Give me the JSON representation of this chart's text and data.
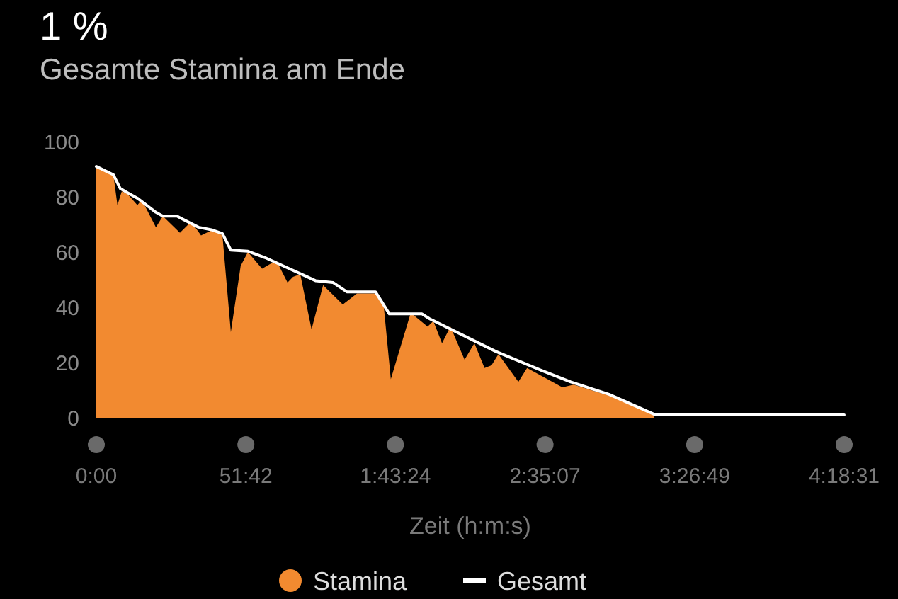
{
  "chart_data": {
    "type": "area",
    "title": "1 %",
    "subtitle": "Gesamte Stamina am Ende",
    "xlabel": "Zeit (h:m:s)",
    "xlim": [
      0,
      258.517
    ],
    "ylim": [
      0,
      100
    ],
    "xticks": [
      {
        "value": 0,
        "label": "0:00"
      },
      {
        "value": 51.7,
        "label": "51:42"
      },
      {
        "value": 103.4,
        "label": "1:43:24"
      },
      {
        "value": 155.117,
        "label": "2:35:07"
      },
      {
        "value": 206.817,
        "label": "3:26:49"
      },
      {
        "value": 258.517,
        "label": "4:18:31"
      }
    ],
    "yticks": [
      0,
      20,
      40,
      60,
      80,
      100
    ],
    "grid": false,
    "legend": "bottom",
    "series": [
      {
        "name": "Stamina",
        "color": "#f28a30",
        "x": [
          0,
          5.9,
          7.3,
          8.8,
          10.8,
          14.2,
          15.7,
          20.6,
          23.0,
          28.9,
          32.8,
          36.2,
          40.1,
          43.6,
          46.5,
          49.9,
          52.4,
          57.3,
          62.2,
          66.1,
          68.0,
          70.5,
          74.4,
          78.4,
          85.2,
          90.1,
          96.5,
          99.4,
          101.8,
          108.7,
          114.5,
          116.5,
          119.5,
          122.4,
          127.3,
          130.7,
          134.2,
          136.6,
          139.0,
          145.9,
          148.9,
          154.2,
          161.1,
          165.0,
          177.2,
          192.9
        ],
        "values": [
          91,
          88,
          77,
          82,
          81,
          77,
          79,
          69,
          73,
          67,
          71,
          66,
          68,
          66,
          31,
          55,
          60,
          54,
          57,
          49,
          51,
          52,
          32,
          48,
          41,
          45,
          45,
          40,
          14,
          38,
          33,
          35,
          27,
          33,
          21,
          27,
          18,
          19,
          23,
          13,
          18,
          15,
          11,
          12,
          8,
          1
        ]
      },
      {
        "name": "Gesamt",
        "type": "line",
        "color": "#ffffff",
        "x": [
          0,
          5.9,
          8.3,
          10.8,
          14.2,
          20.6,
          23.0,
          27.9,
          35.3,
          40.1,
          43.6,
          46.5,
          52.4,
          58.3,
          64.6,
          73.0,
          75.9,
          81.8,
          86.6,
          96.5,
          101.3,
          112.6,
          115.1,
          138.1,
          154.2,
          164.0,
          177.2,
          193.4,
          258.517
        ],
        "values": [
          91,
          88,
          83,
          81.5,
          79.5,
          74.4,
          73,
          73,
          69,
          68,
          66.7,
          60.7,
          60.3,
          58,
          55,
          51,
          49.6,
          49,
          45.6,
          45.6,
          37.6,
          37.6,
          35.9,
          24,
          17,
          13,
          8.5,
          1,
          1
        ]
      }
    ]
  }
}
